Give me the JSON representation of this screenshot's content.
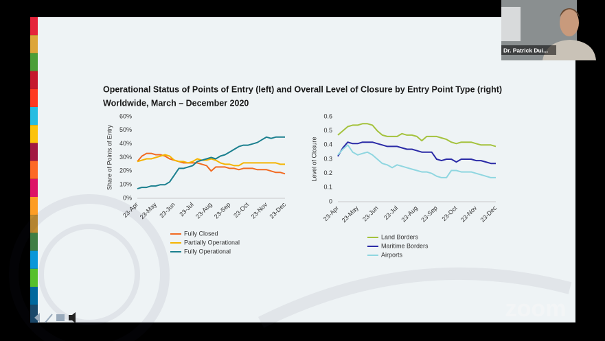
{
  "slide": {
    "title": "Operational Status of Points of Entry (left) and Overall Level of Closure by Entry Point Type (right)",
    "subtitle": "Worldwide, March – December 2020"
  },
  "meeting": {
    "participant_name": "Dr. Patrick Dui...",
    "app_logo": "zoom"
  },
  "chart_data": [
    {
      "type": "line",
      "ylabel": "Share of Points of Entry",
      "categories": [
        "23-Apr",
        null,
        null,
        null,
        "23-May",
        null,
        null,
        null,
        "23-Jun",
        null,
        null,
        null,
        "23-Jul",
        null,
        null,
        null,
        "23-Aug",
        null,
        null,
        null,
        "23-Sep",
        null,
        null,
        null,
        "23-Oct",
        null,
        null,
        null,
        "23-Nov",
        null,
        null,
        null,
        "23-Dec"
      ],
      "ylim": [
        0,
        60
      ],
      "yticks": [
        {
          "value": 0,
          "label": "0%"
        },
        {
          "value": 10,
          "label": "10%"
        },
        {
          "value": 20,
          "label": "20%"
        },
        {
          "value": 30,
          "label": "30%"
        },
        {
          "value": 40,
          "label": "40%"
        },
        {
          "value": 50,
          "label": "50%"
        },
        {
          "value": 60,
          "label": "60%"
        }
      ],
      "series": [
        {
          "name": "Fully Closed",
          "color": "#f26a21",
          "values": [
            27,
            31,
            33,
            33,
            32,
            32,
            31,
            29,
            28,
            27,
            26,
            26,
            26,
            26,
            25,
            24,
            20,
            23,
            23,
            23,
            22,
            22,
            21,
            22,
            22,
            22,
            21,
            21,
            21,
            20,
            19,
            19,
            18
          ]
        },
        {
          "name": "Partially Operational",
          "color": "#f5b400",
          "values": [
            27,
            28,
            29,
            29,
            30,
            31,
            32,
            31,
            28,
            27,
            27,
            26,
            27,
            29,
            28,
            28,
            29,
            28,
            26,
            25,
            25,
            24,
            24,
            26,
            26,
            26,
            26,
            26,
            26,
            26,
            26,
            25,
            25
          ]
        },
        {
          "name": "Fully Operational",
          "color": "#1a7f8e",
          "values": [
            7,
            8,
            8,
            9,
            9,
            10,
            10,
            12,
            17,
            22,
            22,
            23,
            24,
            27,
            28,
            29,
            30,
            29,
            31,
            32,
            34,
            36,
            38,
            39,
            39,
            40,
            41,
            43,
            45,
            44,
            45,
            45,
            45
          ]
        }
      ]
    },
    {
      "type": "line",
      "ylabel": "Level of Closure",
      "categories": [
        "23-Apr",
        null,
        null,
        null,
        "23-May",
        null,
        null,
        null,
        "23-Jun",
        null,
        null,
        null,
        "23-Jul",
        null,
        null,
        null,
        "23-Aug",
        null,
        null,
        null,
        "23-Sep",
        null,
        null,
        null,
        "23-Oct",
        null,
        null,
        null,
        "23-Nov",
        null,
        null,
        null,
        "23-Dec"
      ],
      "ylim": [
        0,
        0.6
      ],
      "yticks": [
        0,
        0.1,
        0.2,
        0.3,
        0.4,
        0.5,
        0.6
      ],
      "series": [
        {
          "name": "Land Borders",
          "color": "#a4c23c",
          "values": [
            0.47,
            0.5,
            0.53,
            0.54,
            0.54,
            0.55,
            0.55,
            0.54,
            0.5,
            0.47,
            0.46,
            0.46,
            0.46,
            0.48,
            0.47,
            0.47,
            0.46,
            0.43,
            0.46,
            0.46,
            0.46,
            0.45,
            0.44,
            0.42,
            0.41,
            0.42,
            0.42,
            0.42,
            0.41,
            0.4,
            0.4,
            0.4,
            0.39
          ]
        },
        {
          "name": "Maritime Borders",
          "color": "#2a2aa6",
          "values": [
            0.32,
            0.38,
            0.42,
            0.41,
            0.41,
            0.42,
            0.42,
            0.42,
            0.41,
            0.4,
            0.39,
            0.39,
            0.39,
            0.38,
            0.37,
            0.37,
            0.36,
            0.35,
            0.35,
            0.35,
            0.3,
            0.29,
            0.3,
            0.3,
            0.28,
            0.3,
            0.3,
            0.3,
            0.29,
            0.29,
            0.28,
            0.27,
            0.27
          ]
        },
        {
          "name": "Airports",
          "color": "#8fd6e0",
          "values": [
            0.33,
            0.37,
            0.4,
            0.35,
            0.33,
            0.34,
            0.35,
            0.33,
            0.3,
            0.27,
            0.26,
            0.24,
            0.26,
            0.25,
            0.24,
            0.23,
            0.22,
            0.21,
            0.21,
            0.2,
            0.18,
            0.17,
            0.17,
            0.22,
            0.22,
            0.21,
            0.21,
            0.21,
            0.2,
            0.19,
            0.18,
            0.17,
            0.17
          ]
        }
      ]
    }
  ]
}
